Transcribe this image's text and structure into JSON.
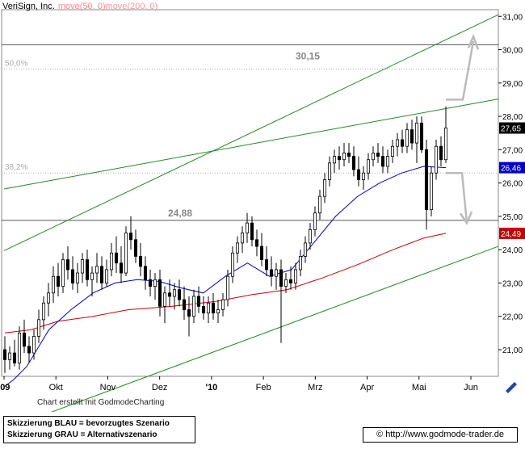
{
  "chart_data": {
    "type": "candlestick",
    "title": "VeriSign, Inc.",
    "indicators": [
      {
        "label": "move(50, 0)",
        "color": "#0000cc"
      },
      {
        "label": "move(200, 0)",
        "color": "#cc0000"
      }
    ],
    "ylim": [
      20.2,
      31.2
    ],
    "y_ticks": [
      "21,00",
      "22,00",
      "23,00",
      "24,00",
      "25,00",
      "26,00",
      "27,00",
      "28,00",
      "29,00",
      "30,00",
      "31,00"
    ],
    "x_ticks": [
      "'09",
      "Okt",
      "Nov",
      "Dez",
      "'10",
      "Feb",
      "Mrz",
      "Apr",
      "Mai",
      "Jun"
    ],
    "price_markers": [
      {
        "label": "27,65",
        "value": 27.65,
        "color": "#000000"
      },
      {
        "label": "26,46",
        "value": 26.46,
        "color": "#0000cc"
      },
      {
        "label": "24,49",
        "value": 24.49,
        "color": "#cc0000"
      }
    ],
    "horizontal_levels": [
      {
        "label": "30,15",
        "value": 30.15
      },
      {
        "label": "24,88",
        "value": 24.88
      }
    ],
    "fib_levels": [
      {
        "label": "50,0%",
        "value": 29.42
      },
      {
        "label": "38,2%",
        "value": 26.3
      }
    ],
    "trendlines": [
      {
        "from": [
          "'09",
          23.97
        ],
        "to": [
          "Jun",
          31.05
        ],
        "color": "#228b22"
      },
      {
        "from": [
          "'09",
          25.82
        ],
        "to": [
          "Jun",
          28.52
        ],
        "color": "#228b22"
      },
      {
        "from": [
          "'09",
          18.6
        ],
        "to": [
          "Jun",
          24.1
        ],
        "color": "#228b22"
      }
    ],
    "ohlc": [
      {
        "o": 21.0,
        "h": 21.4,
        "l": 20.3,
        "c": 20.7
      },
      {
        "o": 20.7,
        "h": 21.1,
        "l": 20.4,
        "c": 20.9
      },
      {
        "o": 20.9,
        "h": 21.3,
        "l": 20.5,
        "c": 20.6
      },
      {
        "o": 20.6,
        "h": 21.7,
        "l": 20.4,
        "c": 21.5
      },
      {
        "o": 21.5,
        "h": 21.9,
        "l": 20.9,
        "c": 21.1
      },
      {
        "o": 21.1,
        "h": 21.4,
        "l": 20.6,
        "c": 20.9
      },
      {
        "o": 20.9,
        "h": 21.6,
        "l": 20.7,
        "c": 21.4
      },
      {
        "o": 21.4,
        "h": 22.2,
        "l": 21.2,
        "c": 21.9
      },
      {
        "o": 21.9,
        "h": 22.6,
        "l": 21.6,
        "c": 22.4
      },
      {
        "o": 22.4,
        "h": 23.0,
        "l": 22.0,
        "c": 22.7
      },
      {
        "o": 22.7,
        "h": 23.5,
        "l": 22.4,
        "c": 23.2
      },
      {
        "o": 23.2,
        "h": 23.6,
        "l": 22.6,
        "c": 22.9
      },
      {
        "o": 22.9,
        "h": 23.9,
        "l": 22.7,
        "c": 23.7
      },
      {
        "o": 23.7,
        "h": 24.1,
        "l": 23.1,
        "c": 23.4
      },
      {
        "o": 23.4,
        "h": 23.8,
        "l": 22.8,
        "c": 23.0
      },
      {
        "o": 23.0,
        "h": 23.6,
        "l": 22.7,
        "c": 23.3
      },
      {
        "o": 23.3,
        "h": 23.9,
        "l": 23.0,
        "c": 23.7
      },
      {
        "o": 23.7,
        "h": 24.0,
        "l": 22.9,
        "c": 23.1
      },
      {
        "o": 23.1,
        "h": 23.5,
        "l": 22.6,
        "c": 23.3
      },
      {
        "o": 23.3,
        "h": 23.9,
        "l": 23.0,
        "c": 23.5
      },
      {
        "o": 23.5,
        "h": 23.8,
        "l": 22.8,
        "c": 23.0
      },
      {
        "o": 23.0,
        "h": 23.7,
        "l": 22.9,
        "c": 23.4
      },
      {
        "o": 23.4,
        "h": 24.2,
        "l": 23.2,
        "c": 23.9
      },
      {
        "o": 23.9,
        "h": 24.4,
        "l": 23.3,
        "c": 23.6
      },
      {
        "o": 23.6,
        "h": 24.1,
        "l": 23.0,
        "c": 23.3
      },
      {
        "o": 23.3,
        "h": 24.7,
        "l": 23.2,
        "c": 24.5
      },
      {
        "o": 24.5,
        "h": 25.0,
        "l": 24.0,
        "c": 24.3
      },
      {
        "o": 24.3,
        "h": 24.6,
        "l": 23.6,
        "c": 23.8
      },
      {
        "o": 23.8,
        "h": 24.2,
        "l": 23.2,
        "c": 23.5
      },
      {
        "o": 23.5,
        "h": 23.8,
        "l": 22.8,
        "c": 23.1
      },
      {
        "o": 23.1,
        "h": 23.4,
        "l": 22.6,
        "c": 22.9
      },
      {
        "o": 22.9,
        "h": 23.3,
        "l": 22.5,
        "c": 23.1
      },
      {
        "o": 23.1,
        "h": 23.4,
        "l": 22.0,
        "c": 22.3
      },
      {
        "o": 22.3,
        "h": 22.9,
        "l": 21.8,
        "c": 22.7
      },
      {
        "o": 22.7,
        "h": 23.1,
        "l": 22.3,
        "c": 22.6
      },
      {
        "o": 22.6,
        "h": 23.0,
        "l": 22.2,
        "c": 22.8
      },
      {
        "o": 22.8,
        "h": 23.1,
        "l": 22.3,
        "c": 22.5
      },
      {
        "o": 22.5,
        "h": 22.9,
        "l": 21.9,
        "c": 22.2
      },
      {
        "o": 22.2,
        "h": 22.6,
        "l": 21.4,
        "c": 22.0
      },
      {
        "o": 22.0,
        "h": 22.8,
        "l": 21.8,
        "c": 22.6
      },
      {
        "o": 22.6,
        "h": 22.9,
        "l": 22.1,
        "c": 22.3
      },
      {
        "o": 22.3,
        "h": 22.6,
        "l": 21.9,
        "c": 22.1
      },
      {
        "o": 22.1,
        "h": 22.6,
        "l": 21.8,
        "c": 22.4
      },
      {
        "o": 22.4,
        "h": 22.7,
        "l": 21.9,
        "c": 22.1
      },
      {
        "o": 22.1,
        "h": 22.5,
        "l": 21.8,
        "c": 22.2
      },
      {
        "o": 22.2,
        "h": 22.7,
        "l": 22.0,
        "c": 22.5
      },
      {
        "o": 22.5,
        "h": 23.4,
        "l": 22.3,
        "c": 23.2
      },
      {
        "o": 23.2,
        "h": 24.1,
        "l": 23.0,
        "c": 23.9
      },
      {
        "o": 23.9,
        "h": 24.4,
        "l": 23.6,
        "c": 24.2
      },
      {
        "o": 24.2,
        "h": 24.7,
        "l": 23.9,
        "c": 24.5
      },
      {
        "o": 24.5,
        "h": 25.1,
        "l": 24.2,
        "c": 24.8
      },
      {
        "o": 24.8,
        "h": 25.0,
        "l": 24.1,
        "c": 24.3
      },
      {
        "o": 24.3,
        "h": 24.6,
        "l": 23.8,
        "c": 24.1
      },
      {
        "o": 24.1,
        "h": 24.5,
        "l": 23.5,
        "c": 23.7
      },
      {
        "o": 23.7,
        "h": 24.1,
        "l": 23.2,
        "c": 23.4
      },
      {
        "o": 23.4,
        "h": 23.8,
        "l": 22.9,
        "c": 23.2
      },
      {
        "o": 23.2,
        "h": 23.6,
        "l": 22.8,
        "c": 23.4
      },
      {
        "o": 23.4,
        "h": 23.7,
        "l": 21.2,
        "c": 22.9
      },
      {
        "o": 22.9,
        "h": 23.3,
        "l": 22.7,
        "c": 23.1
      },
      {
        "o": 23.1,
        "h": 23.5,
        "l": 22.8,
        "c": 23.0
      },
      {
        "o": 23.0,
        "h": 23.6,
        "l": 22.8,
        "c": 23.4
      },
      {
        "o": 23.4,
        "h": 24.0,
        "l": 23.2,
        "c": 23.8
      },
      {
        "o": 23.8,
        "h": 24.4,
        "l": 23.6,
        "c": 24.2
      },
      {
        "o": 24.2,
        "h": 24.8,
        "l": 24.0,
        "c": 24.6
      },
      {
        "o": 24.6,
        "h": 25.3,
        "l": 24.4,
        "c": 25.1
      },
      {
        "o": 25.1,
        "h": 25.8,
        "l": 24.9,
        "c": 25.6
      },
      {
        "o": 25.6,
        "h": 26.3,
        "l": 25.4,
        "c": 26.1
      },
      {
        "o": 26.1,
        "h": 26.8,
        "l": 25.9,
        "c": 26.6
      },
      {
        "o": 26.6,
        "h": 27.0,
        "l": 26.3,
        "c": 26.8
      },
      {
        "o": 26.8,
        "h": 27.1,
        "l": 26.4,
        "c": 26.7
      },
      {
        "o": 26.7,
        "h": 27.2,
        "l": 26.5,
        "c": 26.9
      },
      {
        "o": 26.9,
        "h": 27.2,
        "l": 26.6,
        "c": 26.8
      },
      {
        "o": 26.8,
        "h": 27.1,
        "l": 26.2,
        "c": 26.4
      },
      {
        "o": 26.4,
        "h": 26.8,
        "l": 25.9,
        "c": 26.1
      },
      {
        "o": 26.1,
        "h": 26.5,
        "l": 25.8,
        "c": 26.3
      },
      {
        "o": 26.3,
        "h": 26.9,
        "l": 26.1,
        "c": 26.7
      },
      {
        "o": 26.7,
        "h": 27.1,
        "l": 26.5,
        "c": 26.9
      },
      {
        "o": 26.9,
        "h": 27.2,
        "l": 26.6,
        "c": 26.8
      },
      {
        "o": 26.8,
        "h": 27.1,
        "l": 26.3,
        "c": 26.5
      },
      {
        "o": 26.5,
        "h": 27.0,
        "l": 26.3,
        "c": 26.8
      },
      {
        "o": 26.8,
        "h": 27.3,
        "l": 26.6,
        "c": 27.1
      },
      {
        "o": 27.1,
        "h": 27.5,
        "l": 26.8,
        "c": 27.3
      },
      {
        "o": 27.3,
        "h": 27.6,
        "l": 26.9,
        "c": 27.1
      },
      {
        "o": 27.1,
        "h": 27.8,
        "l": 26.9,
        "c": 27.6
      },
      {
        "o": 27.6,
        "h": 27.9,
        "l": 27.0,
        "c": 27.2
      },
      {
        "o": 27.2,
        "h": 28.0,
        "l": 26.6,
        "c": 27.8
      },
      {
        "o": 27.8,
        "h": 28.0,
        "l": 26.9,
        "c": 27.0
      },
      {
        "o": 27.0,
        "h": 27.3,
        "l": 24.6,
        "c": 25.2
      },
      {
        "o": 25.2,
        "h": 26.5,
        "l": 25.0,
        "c": 26.3
      },
      {
        "o": 26.3,
        "h": 27.3,
        "l": 26.1,
        "c": 27.1
      },
      {
        "o": 27.1,
        "h": 27.4,
        "l": 26.5,
        "c": 26.7
      },
      {
        "o": 26.7,
        "h": 28.3,
        "l": 26.6,
        "c": 27.65
      }
    ],
    "ma50": [
      {
        "t": 0,
        "v": 19.9
      },
      {
        "t": 0.02,
        "v": 20.1
      },
      {
        "t": 0.05,
        "v": 20.5
      },
      {
        "t": 0.1,
        "v": 21.6
      },
      {
        "t": 0.15,
        "v": 22.2
      },
      {
        "t": 0.2,
        "v": 22.7
      },
      {
        "t": 0.25,
        "v": 23.0
      },
      {
        "t": 0.3,
        "v": 23.1
      },
      {
        "t": 0.35,
        "v": 23.05
      },
      {
        "t": 0.4,
        "v": 22.85
      },
      {
        "t": 0.45,
        "v": 22.7
      },
      {
        "t": 0.5,
        "v": 23.2
      },
      {
        "t": 0.55,
        "v": 23.6
      },
      {
        "t": 0.6,
        "v": 23.2
      },
      {
        "t": 0.65,
        "v": 23.4
      },
      {
        "t": 0.7,
        "v": 24.2
      },
      {
        "t": 0.75,
        "v": 25.0
      },
      {
        "t": 0.8,
        "v": 25.6
      },
      {
        "t": 0.85,
        "v": 26.0
      },
      {
        "t": 0.9,
        "v": 26.3
      },
      {
        "t": 0.95,
        "v": 26.5
      },
      {
        "t": 1,
        "v": 26.46
      }
    ],
    "ma200": [
      {
        "t": 0,
        "v": 21.5
      },
      {
        "t": 0.06,
        "v": 21.6
      },
      {
        "t": 0.12,
        "v": 21.85
      },
      {
        "t": 0.2,
        "v": 22.0
      },
      {
        "t": 0.28,
        "v": 22.2
      },
      {
        "t": 0.38,
        "v": 22.3
      },
      {
        "t": 0.48,
        "v": 22.45
      },
      {
        "t": 0.56,
        "v": 22.65
      },
      {
        "t": 0.64,
        "v": 22.8
      },
      {
        "t": 0.72,
        "v": 23.15
      },
      {
        "t": 0.8,
        "v": 23.55
      },
      {
        "t": 0.88,
        "v": 24.0
      },
      {
        "t": 0.95,
        "v": 24.35
      },
      {
        "t": 1,
        "v": 24.49
      }
    ],
    "scenario_arrows": [
      {
        "name": "up",
        "from": 28.5,
        "to": 30.25
      },
      {
        "name": "down",
        "from": 26.3,
        "to": 24.8
      }
    ]
  },
  "footer": {
    "credit": "Chart erstellt mit GodmodeCharting",
    "legend_line1": "Skizzierung BLAU = bevorzugtes Szenario",
    "legend_line2": "Skizzierung GRAU = Alternativszenario",
    "url": "© http://www.godmode-trader.de"
  }
}
